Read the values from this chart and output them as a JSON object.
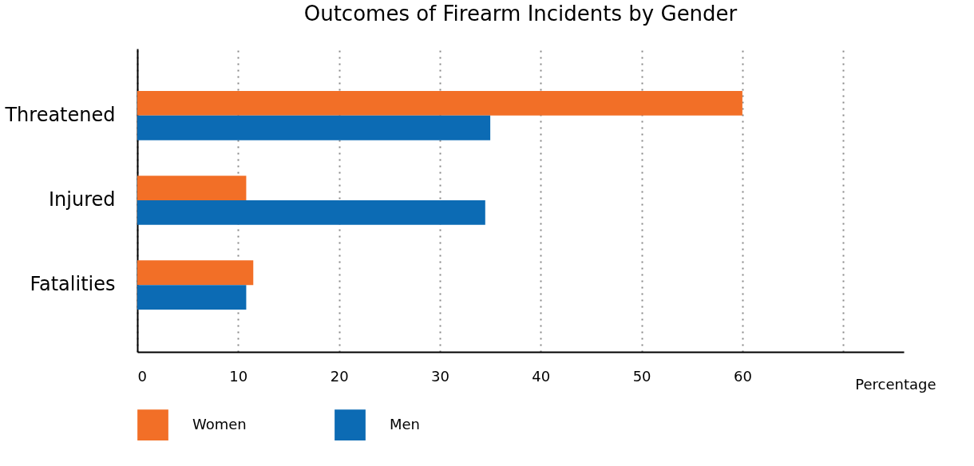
{
  "chart_data": {
    "type": "bar",
    "orientation": "horizontal",
    "title": "Outcomes of Firearm Incidents by Gender",
    "xlabel": "Percentage",
    "categories": [
      "Threatened",
      "Injured",
      "Fatalities"
    ],
    "series": [
      {
        "name": "Women",
        "color": "#f26f27",
        "values": [
          60,
          10.8,
          11.5
        ]
      },
      {
        "name": "Men",
        "color": "#0c6bb4",
        "values": [
          35,
          34.5,
          10.8
        ]
      }
    ],
    "xlim": [
      0,
      76
    ],
    "xticks": [
      0,
      10,
      20,
      30,
      40,
      50,
      60,
      {
        "value": 70,
        "label": null
      }
    ],
    "grid": "x",
    "legend": "bottom"
  }
}
